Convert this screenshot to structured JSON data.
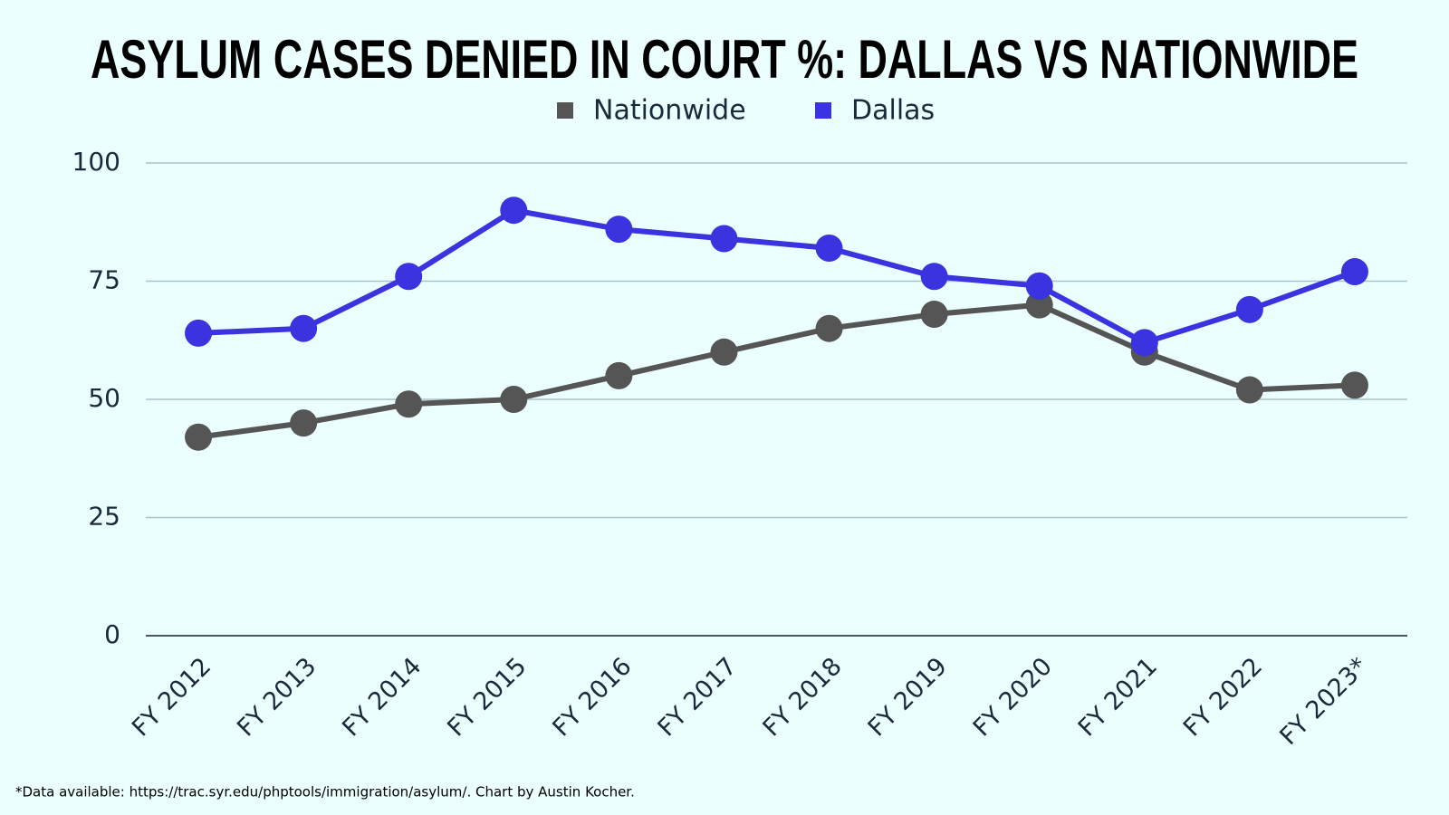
{
  "chart_data": {
    "type": "line",
    "title": "ASYLUM CASES DENIED IN COURT %: DALLAS VS NATIONWIDE",
    "categories": [
      "FY 2012",
      "FY 2013",
      "FY 2014",
      "FY 2015",
      "FY 2016",
      "FY 2017",
      "FY 2018",
      "FY 2019",
      "FY 2020",
      "FY 2021",
      "FY 2022",
      "FY 2023*"
    ],
    "series": [
      {
        "name": "Nationwide",
        "color": "#555555",
        "values": [
          42,
          45,
          49,
          50,
          55,
          60,
          65,
          68,
          70,
          60,
          52,
          53
        ]
      },
      {
        "name": "Dallas",
        "color": "#3b32e0",
        "values": [
          64,
          65,
          76,
          90,
          86,
          84,
          82,
          76,
          74,
          62,
          69,
          77
        ]
      }
    ],
    "ylim": [
      0,
      100
    ],
    "yticks": [
      0,
      25,
      50,
      75,
      100
    ],
    "grid": true,
    "legend": "top",
    "footnote": "*Data available: https://trac.syr.edu/phptools/immigration/asylum/. Chart by Austin Kocher."
  }
}
